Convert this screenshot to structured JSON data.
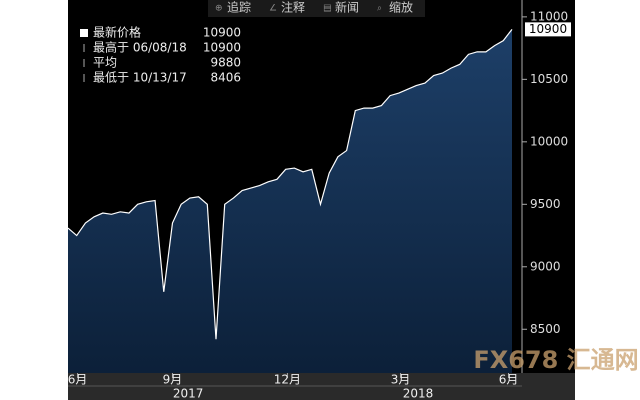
{
  "chart_data": {
    "type": "area",
    "values": [
      9310,
      9250,
      9350,
      9400,
      9430,
      9420,
      9440,
      9430,
      9500,
      9520,
      9530,
      8800,
      9350,
      9500,
      9550,
      9560,
      9500,
      8420,
      9500,
      9550,
      9610,
      9630,
      9650,
      9680,
      9700,
      9780,
      9790,
      9760,
      9780,
      9500,
      9750,
      9880,
      9930,
      10250,
      10270,
      10270,
      10290,
      10370,
      10390,
      10420,
      10450,
      10470,
      10530,
      10550,
      10590,
      10620,
      10700,
      10720,
      10720,
      10770,
      10810,
      10900
    ],
    "color": "#ffffff",
    "ylim": [
      8150,
      11135
    ],
    "yticks": [
      8500,
      9000,
      9500,
      10000,
      10500,
      11000
    ],
    "xlim": [
      0,
      51
    ],
    "xticks": [
      {
        "value": 1.1,
        "label": "6月"
      },
      {
        "value": 12,
        "label": "9月"
      },
      {
        "value": 25.2,
        "label": "12月"
      },
      {
        "value": 38.2,
        "label": "3月"
      },
      {
        "value": 50.6,
        "label": "6月"
      }
    ],
    "years": [
      {
        "value": 13.8,
        "label": "2017"
      },
      {
        "value": 40.2,
        "label": "2018"
      }
    ],
    "last_value": 10900,
    "legend_stats": [
      {
        "label": "最新价格",
        "value": 10900
      },
      {
        "label": "最高于 06/08/18",
        "value": 10900
      },
      {
        "label": "平均",
        "value": 9880
      },
      {
        "label": "最低于 10/13/17",
        "value": 8406
      }
    ],
    "toolbar": [
      "追踪",
      "注释",
      "新闻",
      "缩放"
    ],
    "watermark": "FX678 汇通网"
  }
}
